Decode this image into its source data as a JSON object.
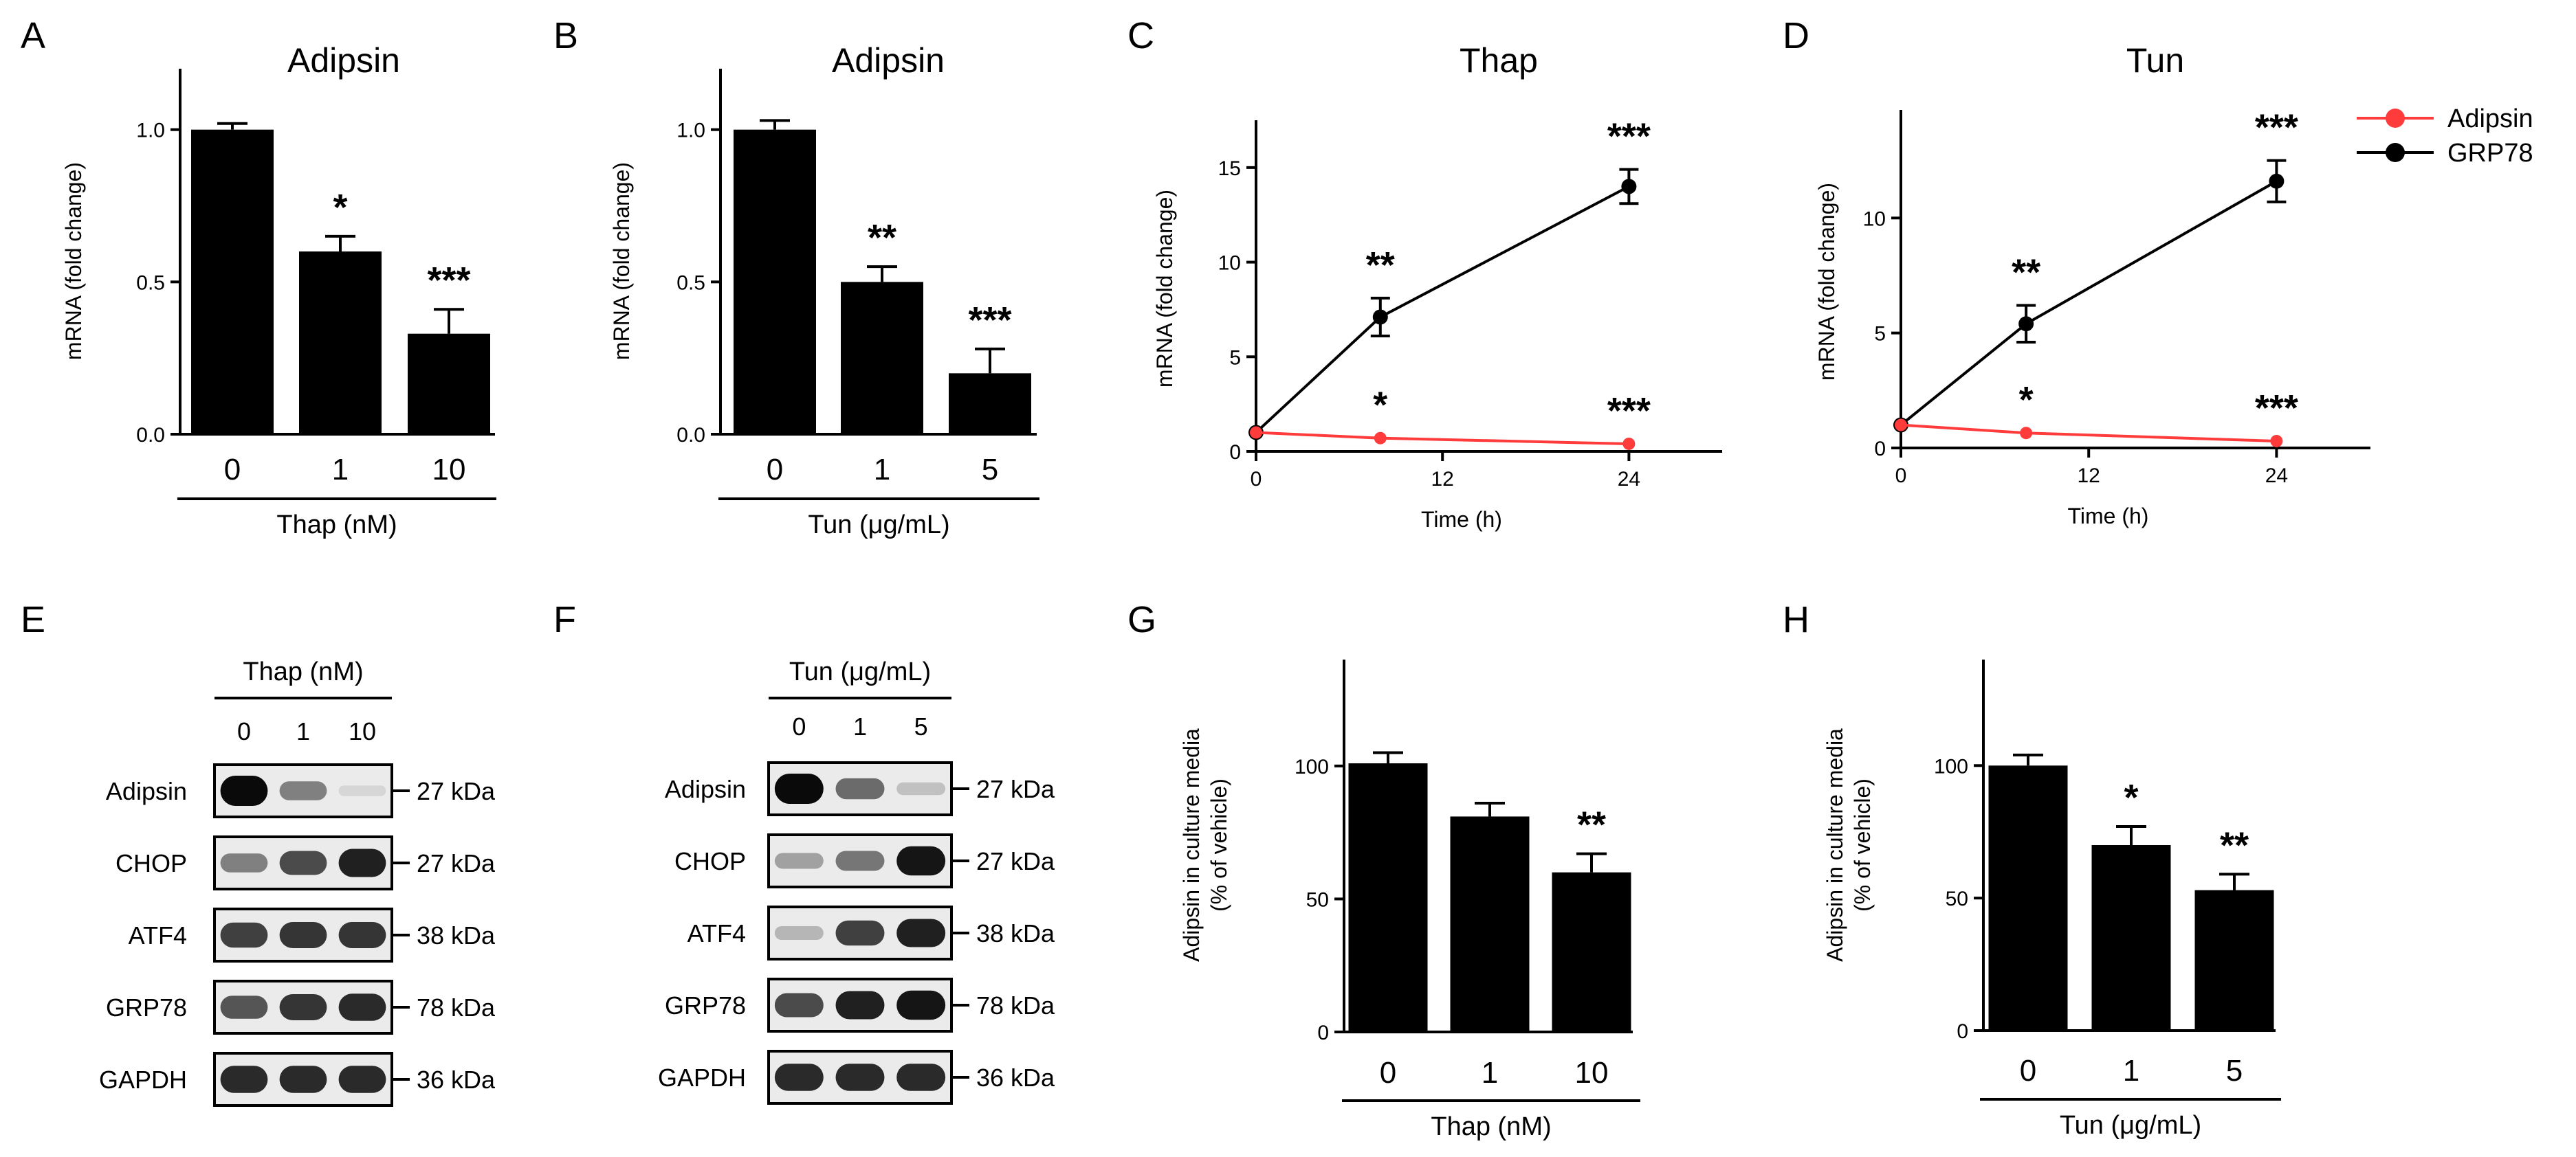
{
  "panel_letters": [
    "A",
    "B",
    "C",
    "D",
    "E",
    "F",
    "G",
    "H"
  ],
  "colors": {
    "adipsin": "#ff3b3b",
    "grp78": "#000000",
    "bar": "#000000"
  },
  "chart_data": [
    {
      "id": "A",
      "type": "bar",
      "title": "Adipsin",
      "categories": [
        "0",
        "1",
        "10"
      ],
      "values": [
        1.0,
        0.6,
        0.33
      ],
      "errors": [
        0.02,
        0.05,
        0.08
      ],
      "significance": [
        "",
        "*",
        "***"
      ],
      "ylabel": "mRNA (fold change)",
      "yticks": [
        "0.0",
        "0.5",
        "1.0"
      ],
      "ylim": [
        0,
        1.2
      ],
      "group_label": "Thap (nM)"
    },
    {
      "id": "B",
      "type": "bar",
      "title": "Adipsin",
      "categories": [
        "0",
        "1",
        "5"
      ],
      "values": [
        1.0,
        0.5,
        0.2
      ],
      "errors": [
        0.03,
        0.05,
        0.08
      ],
      "significance": [
        "",
        "**",
        "***"
      ],
      "ylabel": "mRNA (fold change)",
      "yticks": [
        "0.0",
        "0.5",
        "1.0"
      ],
      "ylim": [
        0,
        1.2
      ],
      "group_label": "Tun (μg/mL)"
    },
    {
      "id": "C",
      "type": "line",
      "title": "Thap",
      "x": [
        0,
        8,
        24
      ],
      "xticks": [
        "0",
        "12",
        "24"
      ],
      "xlim": [
        0,
        30
      ],
      "yticks": [
        "0",
        "5",
        "10",
        "15"
      ],
      "ylim": [
        0,
        17.5
      ],
      "xlabel": "Time (h)",
      "ylabel": "mRNA (fold change)",
      "series": [
        {
          "name": "Adipsin",
          "values": [
            1.0,
            0.7,
            0.4
          ],
          "errors": [
            0.05,
            0.05,
            0.05
          ],
          "significance": [
            "",
            "*",
            "***"
          ]
        },
        {
          "name": "GRP78",
          "values": [
            1.0,
            7.1,
            14.0
          ],
          "errors": [
            0.1,
            1.0,
            0.9
          ],
          "significance": [
            "",
            "**",
            "***"
          ]
        }
      ]
    },
    {
      "id": "D",
      "type": "line",
      "title": "Tun",
      "x": [
        0,
        8,
        24
      ],
      "xticks": [
        "0",
        "12",
        "24"
      ],
      "xlim": [
        0,
        30
      ],
      "yticks": [
        "0",
        "5",
        "10"
      ],
      "ylim": [
        0,
        14.7
      ],
      "xlabel": "Time (h)",
      "ylabel": "mRNA (fold change)",
      "legend": [
        "Adipsin",
        "GRP78"
      ],
      "series": [
        {
          "name": "Adipsin",
          "values": [
            1.0,
            0.65,
            0.3
          ],
          "errors": [
            0.05,
            0.05,
            0.05
          ],
          "significance": [
            "",
            "*",
            "***"
          ]
        },
        {
          "name": "GRP78",
          "values": [
            1.0,
            5.4,
            11.6
          ],
          "errors": [
            0.1,
            0.8,
            0.9
          ],
          "significance": [
            "",
            "**",
            "***"
          ]
        }
      ]
    },
    {
      "id": "G",
      "type": "bar",
      "categories": [
        "0",
        "1",
        "10"
      ],
      "values": [
        101,
        81,
        60
      ],
      "errors": [
        4,
        5,
        7
      ],
      "significance": [
        "",
        "",
        "**"
      ],
      "ylabel_line1": "Adipsin in culture media",
      "ylabel_line2": "(% of vehicle)",
      "yticks": [
        "0",
        "50",
        "100"
      ],
      "ylim": [
        0,
        140
      ],
      "group_label": "Thap (nM)"
    },
    {
      "id": "H",
      "type": "bar",
      "categories": [
        "0",
        "1",
        "5"
      ],
      "values": [
        100,
        70,
        53
      ],
      "errors": [
        4,
        7,
        6
      ],
      "significance": [
        "",
        "*",
        "**"
      ],
      "ylabel_line1": "Adipsin in culture media",
      "ylabel_line2": "(% of vehicle)",
      "yticks": [
        "0",
        "50",
        "100"
      ],
      "ylim": [
        0,
        140
      ],
      "group_label": "Tun (μg/mL)"
    }
  ],
  "blots": [
    {
      "id": "E",
      "treatment": "Thap (nM)",
      "lanes": [
        "0",
        "1",
        "10"
      ],
      "rows": [
        {
          "protein": "Adipsin",
          "size": "27 kDa",
          "intensity": [
            1.0,
            0.45,
            0.05
          ]
        },
        {
          "protein": "CHOP",
          "size": "27 kDa",
          "intensity": [
            0.45,
            0.7,
            0.9
          ]
        },
        {
          "protein": "ATF4",
          "size": "38 kDa",
          "intensity": [
            0.75,
            0.8,
            0.8
          ]
        },
        {
          "protein": "GRP78",
          "size": "78 kDa",
          "intensity": [
            0.65,
            0.8,
            0.85
          ]
        },
        {
          "protein": "GAPDH",
          "size": "36 kDa",
          "intensity": [
            0.85,
            0.85,
            0.85
          ]
        }
      ]
    },
    {
      "id": "F",
      "treatment": "Tun (μg/mL)",
      "lanes": [
        "0",
        "1",
        "5"
      ],
      "rows": [
        {
          "protein": "Adipsin",
          "size": "27 kDa",
          "intensity": [
            1.0,
            0.55,
            0.15
          ]
        },
        {
          "protein": "CHOP",
          "size": "27 kDa",
          "intensity": [
            0.3,
            0.5,
            0.95
          ]
        },
        {
          "protein": "ATF4",
          "size": "38 kDa",
          "intensity": [
            0.2,
            0.75,
            0.9
          ]
        },
        {
          "protein": "GRP78",
          "size": "78 kDa",
          "intensity": [
            0.7,
            0.9,
            0.95
          ]
        },
        {
          "protein": "GAPDH",
          "size": "36 kDa",
          "intensity": [
            0.85,
            0.85,
            0.85
          ]
        }
      ]
    }
  ]
}
